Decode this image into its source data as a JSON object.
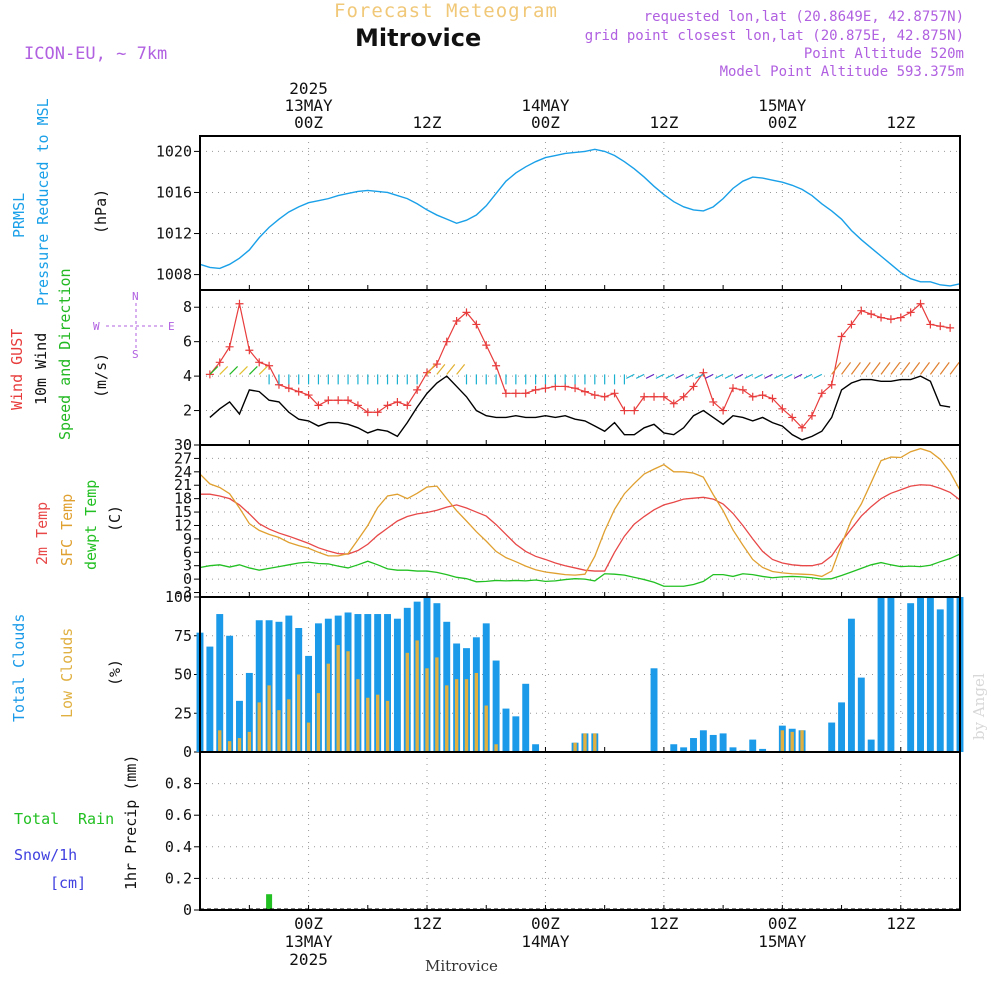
{
  "header": {
    "product_title": "Forecast Meteogram",
    "place": "Mitrovice",
    "model": "ICON-EU, ~ 7km",
    "requested": "requested lon,lat (20.8649E, 42.8757N)",
    "grid_point": "grid point closest lon,lat (20.875E, 42.875N)",
    "point_altitude": "Point Altitude 520m",
    "model_altitude": "Model Point Altitude 593.375m"
  },
  "time_axis": {
    "top_labels": [
      {
        "h": 0,
        "lines": [
          "2025",
          "13MAY",
          "00Z"
        ]
      },
      {
        "h": 12,
        "lines": [
          "12Z"
        ]
      },
      {
        "h": 24,
        "lines": [
          "14MAY",
          "00Z"
        ]
      },
      {
        "h": 36,
        "lines": [
          "12Z"
        ]
      },
      {
        "h": 48,
        "lines": [
          "15MAY",
          "00Z"
        ]
      },
      {
        "h": 60,
        "lines": [
          "12Z"
        ]
      }
    ],
    "bottom_labels": [
      {
        "h": 0,
        "lines": [
          "00Z",
          "13MAY",
          "2025"
        ]
      },
      {
        "h": 12,
        "lines": [
          "12Z"
        ]
      },
      {
        "h": 24,
        "lines": [
          "00Z",
          "14MAY"
        ]
      },
      {
        "h": 36,
        "lines": [
          "12Z"
        ]
      },
      {
        "h": 48,
        "lines": [
          "00Z",
          "15MAY"
        ]
      },
      {
        "h": 60,
        "lines": [
          "12Z"
        ]
      }
    ],
    "range_hours": [
      -11,
      66
    ]
  },
  "footer": {
    "place": "Mitrovice"
  },
  "watermark": "by Angel",
  "colors": {
    "pressure": "#1aa0e8",
    "gust": "#e83c3c",
    "wind": "#000000",
    "dir": "#22b822",
    "temp2m": "#e84848",
    "sfc": "#e0a030",
    "dewpt": "#22c022",
    "total_cloud": "#1a9ae8",
    "low_cloud": "#e0b040",
    "rain": "#22c022",
    "snow": "#4040e0",
    "label_purple": "#b060e0"
  },
  "panels": {
    "pressure": {
      "labels": [
        "PRMSL",
        "Pressure Reduced to MSL",
        "(hPa)"
      ]
    },
    "wind": {
      "labels": [
        "Wind GUST",
        "10m Wind",
        "Speed and Direction",
        "(m/s)"
      ],
      "compass": {
        "n": "N",
        "s": "S",
        "e": "E",
        "w": "W"
      }
    },
    "temp": {
      "labels": [
        "2m Temp",
        "SFC Temp",
        "dewpt Temp",
        "(C)"
      ]
    },
    "cloud": {
      "labels": [
        "Total Clouds",
        "Low Clouds",
        "(%)"
      ]
    },
    "precip": {
      "labels": [
        "Total",
        "Rain",
        "Snow/1h",
        "[cm]",
        "1hr Precip (mm)"
      ]
    }
  },
  "chart_data": [
    {
      "type": "line",
      "title": "Pressure Reduced to MSL",
      "ylabel": "(hPa)",
      "ylim": [
        1006.5,
        1021.5
      ],
      "yticks": [
        1008,
        1012,
        1016,
        1020
      ],
      "series": [
        {
          "name": "PRMSL",
          "x": [
            -11,
            -10,
            -9,
            -8,
            -7,
            -6,
            -5,
            -4,
            -3,
            -2,
            -1,
            0,
            1,
            2,
            3,
            4,
            5,
            6,
            7,
            8,
            9,
            10,
            11,
            12,
            13,
            14,
            15,
            16,
            17,
            18,
            19,
            20,
            21,
            22,
            23,
            24,
            25,
            26,
            27,
            28,
            29,
            30,
            31,
            32,
            33,
            34,
            35,
            36,
            37,
            38,
            39,
            40,
            41,
            42,
            43,
            44,
            45,
            46,
            47,
            48,
            49,
            50,
            51,
            52,
            53,
            54,
            55,
            56,
            57,
            58,
            59,
            60,
            61,
            62,
            63,
            64,
            65,
            66
          ],
          "values": [
            1009.0,
            1008.7,
            1008.6,
            1009.0,
            1009.6,
            1010.4,
            1011.6,
            1012.6,
            1013.4,
            1014.1,
            1014.6,
            1015.0,
            1015.2,
            1015.4,
            1015.7,
            1015.9,
            1016.1,
            1016.2,
            1016.1,
            1016.0,
            1015.7,
            1015.4,
            1014.9,
            1014.3,
            1013.8,
            1013.4,
            1013.0,
            1013.3,
            1013.8,
            1014.7,
            1015.9,
            1017.1,
            1017.9,
            1018.5,
            1019.0,
            1019.4,
            1019.6,
            1019.8,
            1019.9,
            1020.0,
            1020.2,
            1020.0,
            1019.6,
            1019.0,
            1018.3,
            1017.5,
            1016.6,
            1015.8,
            1015.1,
            1014.6,
            1014.3,
            1014.2,
            1014.6,
            1015.4,
            1016.4,
            1017.1,
            1017.5,
            1017.4,
            1017.2,
            1017.0,
            1016.7,
            1016.3,
            1015.7,
            1014.9,
            1014.2,
            1013.4,
            1012.3,
            1011.4,
            1010.6,
            1009.8,
            1009.0,
            1008.2,
            1007.6,
            1007.3,
            1007.3,
            1007.0,
            1006.9,
            1007.1
          ]
        }
      ]
    },
    {
      "type": "line",
      "title": "Wind GUST / 10m Wind Speed and Direction",
      "ylabel": "(m/s)",
      "ylim": [
        0,
        9
      ],
      "yticks": [
        0,
        2,
        4,
        6,
        8
      ],
      "x": [
        -10,
        -9,
        -8,
        -7,
        -6,
        -5,
        -4,
        -3,
        -2,
        -1,
        0,
        1,
        2,
        3,
        4,
        5,
        6,
        7,
        8,
        9,
        10,
        11,
        12,
        13,
        14,
        15,
        16,
        17,
        18,
        19,
        20,
        21,
        22,
        23,
        24,
        25,
        26,
        27,
        28,
        29,
        30,
        31,
        32,
        33,
        34,
        35,
        36,
        37,
        38,
        39,
        40,
        41,
        42,
        43,
        44,
        45,
        46,
        47,
        48,
        49,
        50,
        51,
        52,
        53,
        54,
        55,
        56,
        57,
        58,
        59,
        60,
        61,
        62,
        63,
        64,
        65
      ],
      "series": [
        {
          "name": "Wind GUST",
          "values": [
            4.1,
            4.8,
            5.7,
            8.2,
            5.5,
            4.8,
            4.6,
            3.5,
            3.3,
            3.1,
            2.9,
            2.3,
            2.6,
            2.6,
            2.6,
            2.3,
            1.9,
            1.9,
            2.3,
            2.5,
            2.3,
            3.2,
            4.2,
            4.7,
            6.0,
            7.2,
            7.7,
            7.0,
            5.8,
            4.6,
            3.0,
            3.0,
            3.0,
            3.2,
            3.3,
            3.4,
            3.4,
            3.3,
            3.1,
            2.9,
            2.8,
            3.0,
            2.0,
            2.0,
            2.8,
            2.8,
            2.8,
            2.4,
            2.8,
            3.4,
            4.2,
            2.5,
            2.0,
            3.3,
            3.2,
            2.8,
            2.9,
            2.7,
            2.1,
            1.6,
            1.0,
            1.7,
            3.0,
            3.5,
            6.3,
            7.0,
            7.8,
            7.6,
            7.4,
            7.3,
            7.4,
            7.7,
            8.2,
            7.0,
            6.9,
            6.8
          ]
        },
        {
          "name": "10m Wind",
          "values": [
            1.6,
            2.1,
            2.5,
            1.8,
            3.2,
            3.1,
            2.6,
            2.5,
            1.9,
            1.5,
            1.4,
            1.1,
            1.3,
            1.3,
            1.2,
            1.0,
            0.7,
            0.9,
            0.8,
            0.5,
            1.3,
            2.2,
            3.0,
            3.6,
            4.0,
            3.4,
            2.8,
            2.0,
            1.7,
            1.6,
            1.6,
            1.7,
            1.6,
            1.6,
            1.7,
            1.6,
            1.7,
            1.5,
            1.4,
            1.1,
            0.8,
            1.3,
            0.6,
            0.6,
            1.0,
            1.2,
            0.7,
            0.6,
            1.0,
            1.7,
            2.0,
            1.6,
            1.2,
            1.7,
            1.6,
            1.4,
            1.6,
            1.3,
            1.1,
            0.6,
            0.3,
            0.5,
            0.8,
            1.6,
            3.2,
            3.6,
            3.8,
            3.8,
            3.7,
            3.7,
            3.8,
            3.8,
            4.0,
            3.7,
            2.3,
            2.2
          ]
        }
      ]
    },
    {
      "type": "line",
      "title": "2m Temp / SFC Temp / dewpt Temp",
      "ylabel": "(C)",
      "ylim": [
        -4,
        30
      ],
      "yticks": [
        -3,
        0,
        3,
        6,
        9,
        12,
        15,
        18,
        21,
        24,
        27,
        30
      ],
      "x": [
        -11,
        -10,
        -9,
        -8,
        -7,
        -6,
        -5,
        -4,
        -3,
        -2,
        -1,
        0,
        1,
        2,
        3,
        4,
        5,
        6,
        7,
        8,
        9,
        10,
        11,
        12,
        13,
        14,
        15,
        16,
        17,
        18,
        19,
        20,
        21,
        22,
        23,
        24,
        25,
        26,
        27,
        28,
        29,
        30,
        31,
        32,
        33,
        34,
        35,
        36,
        37,
        38,
        39,
        40,
        41,
        42,
        43,
        44,
        45,
        46,
        47,
        48,
        49,
        50,
        51,
        52,
        53,
        54,
        55,
        56,
        57,
        58,
        59,
        60,
        61,
        62,
        63,
        64,
        65,
        66
      ],
      "series": [
        {
          "name": "2m Temp",
          "values": [
            19.0,
            19.0,
            18.6,
            18.0,
            16.6,
            14.6,
            12.4,
            11.2,
            10.3,
            9.6,
            8.8,
            8.0,
            7.0,
            6.3,
            5.7,
            5.6,
            6.4,
            7.8,
            9.8,
            11.4,
            13.0,
            14.0,
            14.6,
            14.9,
            15.4,
            16.1,
            16.6,
            15.9,
            15.0,
            14.1,
            12.2,
            10.0,
            7.8,
            6.2,
            5.1,
            4.4,
            3.6,
            3.0,
            2.5,
            2.0,
            1.8,
            1.8,
            6.0,
            9.6,
            12.3,
            14.0,
            15.5,
            16.6,
            17.2,
            17.9,
            18.1,
            18.3,
            17.9,
            16.8,
            14.7,
            12.0,
            9.0,
            6.2,
            4.4,
            3.6,
            3.2,
            3.0,
            3.0,
            3.5,
            5.2,
            8.4,
            11.3,
            14.1,
            16.2,
            18.0,
            19.2,
            20.0,
            20.8,
            21.1,
            21.0,
            20.3,
            19.4,
            17.7
          ]
        },
        {
          "name": "SFC Temp",
          "values": [
            23.5,
            21.3,
            20.5,
            19.1,
            15.9,
            12.4,
            10.9,
            10.0,
            9.3,
            8.2,
            7.5,
            6.9,
            6.0,
            5.2,
            5.2,
            5.7,
            8.8,
            12.0,
            16.0,
            18.6,
            19.0,
            18.0,
            19.2,
            20.6,
            20.8,
            18.0,
            15.3,
            13.0,
            10.6,
            8.5,
            6.2,
            4.8,
            3.9,
            2.9,
            2.1,
            1.6,
            1.3,
            1.0,
            0.9,
            1.1,
            5.1,
            10.8,
            15.6,
            19.1,
            21.4,
            23.5,
            24.6,
            25.6,
            24.0,
            24.0,
            23.7,
            22.8,
            18.9,
            15.3,
            11.0,
            7.6,
            4.4,
            2.6,
            1.7,
            1.4,
            1.2,
            1.1,
            1.0,
            0.6,
            1.8,
            7.8,
            13.2,
            16.8,
            21.6,
            26.5,
            27.3,
            27.2,
            28.5,
            29.2,
            28.5,
            26.8,
            23.9,
            19.9
          ]
        },
        {
          "name": "dewpt Temp",
          "values": [
            2.6,
            3.0,
            3.2,
            2.7,
            3.2,
            2.5,
            2.0,
            2.4,
            2.8,
            3.2,
            3.6,
            3.8,
            3.5,
            3.4,
            2.9,
            2.5,
            3.2,
            4.0,
            3.2,
            2.3,
            2.0,
            2.0,
            1.8,
            1.8,
            1.5,
            1.0,
            0.4,
            0.1,
            -0.6,
            -0.5,
            -0.3,
            -0.4,
            -0.3,
            -0.4,
            -0.2,
            -0.5,
            -0.4,
            -0.1,
            0.1,
            0.0,
            -0.4,
            1.2,
            1.1,
            0.9,
            0.4,
            -0.1,
            -0.7,
            -1.6,
            -1.6,
            -1.6,
            -1.2,
            -0.5,
            1.0,
            1.0,
            0.6,
            1.2,
            1.0,
            0.6,
            0.3,
            0.5,
            0.6,
            0.5,
            0.3,
            0.0,
            0.1,
            0.8,
            1.6,
            2.4,
            3.2,
            3.7,
            3.2,
            2.8,
            2.9,
            2.8,
            3.1,
            3.9,
            4.6,
            5.6
          ]
        }
      ]
    },
    {
      "type": "bar",
      "title": "Total Clouds / Low Clouds",
      "ylabel": "(%)",
      "ylim": [
        0,
        100
      ],
      "yticks": [
        0,
        25,
        50,
        75,
        100
      ],
      "x": [
        -11,
        -10,
        -9,
        -8,
        -7,
        -6,
        -5,
        -4,
        -3,
        -2,
        -1,
        0,
        1,
        2,
        3,
        4,
        5,
        6,
        7,
        8,
        9,
        10,
        11,
        12,
        13,
        14,
        15,
        16,
        17,
        18,
        19,
        20,
        21,
        22,
        23,
        24,
        25,
        26,
        27,
        28,
        29,
        30,
        31,
        32,
        33,
        34,
        35,
        36,
        37,
        38,
        39,
        40,
        41,
        42,
        43,
        44,
        45,
        46,
        47,
        48,
        49,
        50,
        51,
        52,
        53,
        54,
        55,
        56,
        57,
        58,
        59,
        60,
        61,
        62,
        63,
        64,
        65,
        66
      ],
      "series": [
        {
          "name": "Total Clouds",
          "values": [
            77,
            68,
            89,
            75,
            33,
            51,
            85,
            85,
            84,
            88,
            80,
            62,
            83,
            86,
            88,
            90,
            89,
            89,
            89,
            89,
            86,
            93,
            97,
            100,
            96,
            84,
            70,
            67,
            74,
            83,
            59,
            28,
            23,
            44,
            5,
            0,
            0,
            0,
            6,
            12,
            12,
            0,
            0,
            0,
            0,
            0,
            54,
            0,
            5,
            3,
            9,
            14,
            11,
            12,
            3,
            1,
            8,
            2,
            0,
            17,
            15,
            14,
            0,
            0,
            19,
            32,
            86,
            48,
            8,
            100,
            100,
            0,
            96,
            100,
            100,
            92,
            100,
            100
          ]
        },
        {
          "name": "Low Clouds",
          "values": [
            0,
            0,
            14,
            7,
            9,
            13,
            32,
            43,
            27,
            34,
            50,
            19,
            38,
            57,
            69,
            65,
            47,
            35,
            37,
            33,
            0,
            64,
            72,
            54,
            61,
            43,
            47,
            47,
            51,
            30,
            5,
            0,
            0,
            0,
            0,
            0,
            0,
            0,
            6,
            12,
            12,
            0,
            0,
            0,
            0,
            0,
            0,
            0,
            0,
            0,
            0,
            0,
            0,
            0,
            0,
            0,
            0,
            0,
            0,
            14,
            13,
            14,
            0,
            0,
            0,
            0,
            0,
            0,
            0,
            0,
            0,
            0,
            0,
            0,
            0,
            0,
            0,
            0
          ]
        }
      ]
    },
    {
      "type": "bar",
      "title": "1hr Precip",
      "ylabel": "1hr Precip (mm)",
      "ylim": [
        0,
        1.0
      ],
      "yticks": [
        0,
        0.2,
        0.4,
        0.6,
        0.8
      ],
      "series": [
        {
          "name": "Total Rain",
          "x": [
            -4
          ],
          "values": [
            0.1
          ]
        },
        {
          "name": "Snow/1h",
          "x": [],
          "values": []
        }
      ]
    }
  ]
}
